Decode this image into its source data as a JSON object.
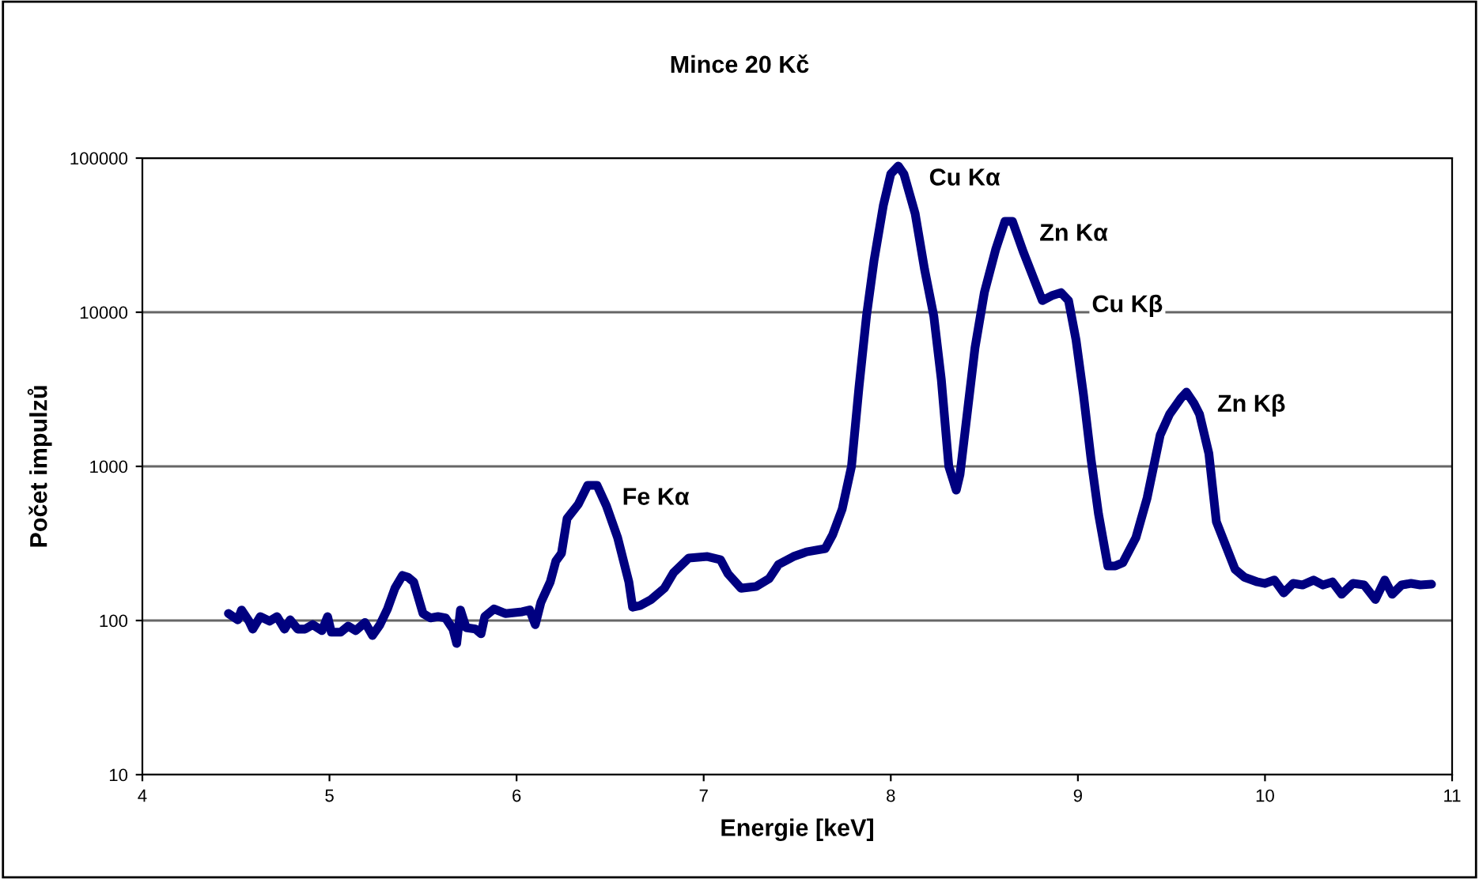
{
  "chart_data": {
    "type": "line",
    "title": "Mince 20 Kč",
    "xlabel": "Energie [keV]",
    "ylabel": "Počet impulzů",
    "log": "y",
    "grid": "y",
    "marker": "none",
    "line_style": "solid",
    "xlim": [
      4,
      11
    ],
    "xticks": [
      4,
      5,
      6,
      7,
      8,
      9,
      10,
      11
    ],
    "ylim": [
      10,
      100000
    ],
    "yticks": [
      10,
      100,
      1000,
      10000,
      100000
    ],
    "annotations": [
      {
        "text": "Fe Kα",
        "x": 6.4,
        "y": 753
      },
      {
        "text": "Cu Kα",
        "x": 8.04,
        "y": 88900
      },
      {
        "text": "Zn Kα",
        "x": 8.63,
        "y": 38900
      },
      {
        "text": "Cu Kβ",
        "x": 8.91,
        "y": 13400
      },
      {
        "text": "Zn Kβ",
        "x": 9.58,
        "y": 3030
      }
    ],
    "series": [
      {
        "color": "#000080",
        "x": [
          4.46,
          4.51,
          4.53,
          4.57,
          4.59,
          4.63,
          4.68,
          4.72,
          4.76,
          4.79,
          4.83,
          4.87,
          4.91,
          4.96,
          4.99,
          5.01,
          5.06,
          5.1,
          5.14,
          5.19,
          5.23,
          5.27,
          5.31,
          5.35,
          5.39,
          5.42,
          5.45,
          5.5,
          5.54,
          5.58,
          5.62,
          5.66,
          5.68,
          5.7,
          5.73,
          5.78,
          5.81,
          5.83,
          5.88,
          5.94,
          6.03,
          6.07,
          6.1,
          6.13,
          6.18,
          6.21,
          6.24,
          6.27,
          6.33,
          6.38,
          6.43,
          6.48,
          6.54,
          6.6,
          6.62,
          6.66,
          6.72,
          6.79,
          6.84,
          6.92,
          7.02,
          7.09,
          7.13,
          7.2,
          7.28,
          7.35,
          7.4,
          7.48,
          7.55,
          7.65,
          7.69,
          7.74,
          7.79,
          7.83,
          7.87,
          7.91,
          7.96,
          8.0,
          8.04,
          8.07,
          8.13,
          8.18,
          8.23,
          8.27,
          8.31,
          8.35,
          8.37,
          8.41,
          8.45,
          8.5,
          8.56,
          8.61,
          8.65,
          8.71,
          8.76,
          8.81,
          8.86,
          8.91,
          8.95,
          8.99,
          9.03,
          9.07,
          9.11,
          9.16,
          9.2,
          9.24,
          9.31,
          9.37,
          9.44,
          9.49,
          9.55,
          9.58,
          9.62,
          9.65,
          9.7,
          9.74,
          9.84,
          9.89,
          9.96,
          10.0,
          10.05,
          10.1,
          10.15,
          10.2,
          10.26,
          10.31,
          10.36,
          10.41,
          10.47,
          10.53,
          10.59,
          10.64,
          10.68,
          10.73,
          10.78,
          10.83,
          10.89
        ],
        "values": [
          111,
          101,
          117,
          99,
          88,
          106,
          99,
          106,
          88,
          101,
          88,
          88,
          94,
          86,
          106,
          84,
          84,
          92,
          86,
          97,
          80,
          94,
          119,
          162,
          196,
          191,
          178,
          111,
          104,
          106,
          104,
          88,
          71,
          117,
          90,
          88,
          82,
          106,
          119,
          111,
          114,
          117,
          94,
          131,
          178,
          243,
          273,
          459,
          568,
          753,
          753,
          555,
          345,
          178,
          122,
          125,
          137,
          162,
          205,
          254,
          260,
          248,
          201,
          162,
          166,
          187,
          231,
          260,
          279,
          293,
          362,
          528,
          1000,
          3260,
          9420,
          21500,
          49200,
          78900,
          88900,
          78900,
          43800,
          19100,
          9420,
          3660,
          1000,
          702,
          889,
          2290,
          5870,
          13400,
          25400,
          38900,
          38900,
          24300,
          17000,
          11900,
          12800,
          13400,
          11900,
          6620,
          2900,
          1120,
          492,
          226,
          226,
          237,
          345,
          624,
          1600,
          2180,
          2760,
          3030,
          2570,
          2180,
          1210,
          438,
          215,
          191,
          178,
          174,
          183,
          151,
          174,
          170,
          183,
          170,
          178,
          148,
          174,
          170,
          137,
          183,
          148,
          170,
          174,
          170,
          172
        ]
      }
    ]
  }
}
